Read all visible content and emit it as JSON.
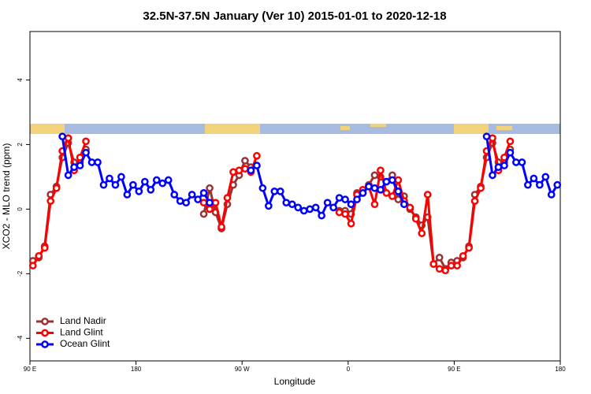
{
  "chart_data": {
    "type": "line",
    "title": "32.5N-37.5N January (Ver 10)   2015-01-01 to 2020-12-18",
    "x_label": "Longitude",
    "y_label": "XCO2 - MLO trend (ppm)",
    "x": [
      92.5,
      97.5,
      102.5,
      107.5,
      112.5,
      117.5,
      122.5,
      127.5,
      132.5,
      137.5,
      142.5,
      147.5,
      152.5,
      157.5,
      162.5,
      167.5,
      172.5,
      177.5,
      182.5,
      187.5,
      192.5,
      197.5,
      202.5,
      207.5,
      212.5,
      217.5,
      222.5,
      227.5,
      232.5,
      237.5,
      242.5,
      247.5,
      252.5,
      257.5,
      262.5,
      267.5,
      272.5,
      277.5,
      282.5,
      287.5,
      292.5,
      297.5,
      302.5,
      307.5,
      312.5,
      317.5,
      322.5,
      327.5,
      332.5,
      337.5,
      342.5,
      347.5,
      352.5,
      357.5,
      362.5,
      367.5,
      372.5,
      377.5,
      382.5,
      387.5,
      392.5,
      397.5,
      402.5,
      407.5,
      412.5,
      417.5,
      422.5,
      427.5,
      432.5,
      437.5,
      442.5,
      447.5,
      452.5,
      457.5,
      462.5,
      467.5,
      472.5,
      477.5,
      482.5,
      487.5,
      492.5,
      497.5,
      502.5,
      507.5,
      512.5,
      517.5,
      522.5,
      527.5,
      532.5,
      537.5
    ],
    "series": [
      {
        "name": "Land Nadir",
        "color": "#993333",
        "values": [
          -1.6,
          -1.5,
          -1.15,
          0.45,
          0.7,
          1.6,
          2.05,
          1.45,
          1.45,
          1.85,
          null,
          null,
          null,
          null,
          null,
          null,
          null,
          null,
          null,
          null,
          null,
          null,
          null,
          null,
          null,
          null,
          null,
          null,
          null,
          -0.15,
          0.65,
          -0.1,
          -0.6,
          0.15,
          0.75,
          1.05,
          1.5,
          1.3,
          1.35,
          null,
          null,
          null,
          null,
          null,
          null,
          null,
          null,
          null,
          null,
          null,
          null,
          null,
          -0.05,
          -0.05,
          -0.15,
          0.5,
          0.5,
          0.75,
          1.05,
          1.0,
          0.85,
          1.05,
          0.3,
          0.4,
          0.0,
          -0.25,
          -0.5,
          -0.25,
          -1.7,
          -1.5,
          -1.85,
          -1.65,
          -1.6,
          -1.5,
          -1.15,
          0.45,
          0.7,
          1.6,
          2.05,
          1.45,
          1.45,
          1.85,
          null,
          null,
          null,
          null,
          null,
          null,
          null,
          null
        ]
      },
      {
        "name": "Land Glint",
        "color": "#ff0000",
        "values": [
          -1.75,
          -1.45,
          -1.2,
          0.25,
          0.65,
          1.8,
          2.2,
          1.2,
          1.6,
          2.1,
          null,
          null,
          null,
          null,
          null,
          null,
          null,
          null,
          null,
          null,
          null,
          null,
          null,
          null,
          null,
          null,
          null,
          null,
          null,
          0.2,
          0.0,
          0.2,
          -0.55,
          0.35,
          1.15,
          1.2,
          1.25,
          1.15,
          1.65,
          null,
          null,
          null,
          null,
          null,
          null,
          null,
          null,
          null,
          null,
          null,
          null,
          null,
          -0.1,
          -0.15,
          -0.45,
          0.45,
          0.6,
          0.7,
          0.15,
          1.2,
          0.5,
          0.4,
          0.9,
          0.25,
          0.05,
          -0.3,
          -0.75,
          0.45,
          -1.7,
          -1.85,
          -1.9,
          -1.75,
          -1.75,
          -1.45,
          -1.2,
          0.25,
          0.65,
          1.8,
          2.2,
          1.2,
          1.6,
          2.1,
          null,
          null,
          null,
          null,
          null,
          null,
          null,
          null
        ]
      },
      {
        "name": "Ocean Glint",
        "color": "#0000ff",
        "values": [
          null,
          null,
          null,
          null,
          null,
          2.25,
          1.05,
          1.3,
          1.35,
          1.75,
          1.45,
          1.45,
          0.75,
          0.95,
          0.75,
          1.0,
          0.45,
          0.75,
          0.55,
          0.85,
          0.6,
          0.9,
          0.8,
          0.9,
          0.45,
          0.25,
          0.2,
          0.45,
          0.3,
          0.5,
          0.2,
          null,
          null,
          null,
          null,
          null,
          null,
          1.2,
          1.35,
          0.65,
          0.1,
          0.55,
          0.55,
          0.2,
          0.15,
          0.05,
          -0.05,
          0.0,
          0.05,
          -0.2,
          0.2,
          0.05,
          0.35,
          0.3,
          0.15,
          0.3,
          0.5,
          0.7,
          0.65,
          0.6,
          0.85,
          0.9,
          0.55,
          0.15,
          null,
          null,
          null,
          null,
          null,
          null,
          null,
          null,
          null,
          null,
          null,
          null,
          null,
          2.25,
          1.05,
          1.3,
          1.35,
          1.75,
          1.45,
          1.45,
          0.75,
          0.95,
          0.75,
          1.0,
          0.45,
          0.75
        ]
      }
    ],
    "xlim": [
      90,
      540
    ],
    "xticks": [
      {
        "value": 90,
        "label": "90 E"
      },
      {
        "value": 180,
        "label": "180"
      },
      {
        "value": 270,
        "label": "90 W"
      },
      {
        "value": 360,
        "label": "0"
      },
      {
        "value": 450,
        "label": "90 E"
      },
      {
        "value": 540,
        "label": "180"
      }
    ],
    "ylim": [
      -4.7,
      5.5
    ],
    "yticks": [
      -4,
      -2,
      0,
      2,
      4
    ],
    "grid": false,
    "legend": "bottom-left"
  }
}
